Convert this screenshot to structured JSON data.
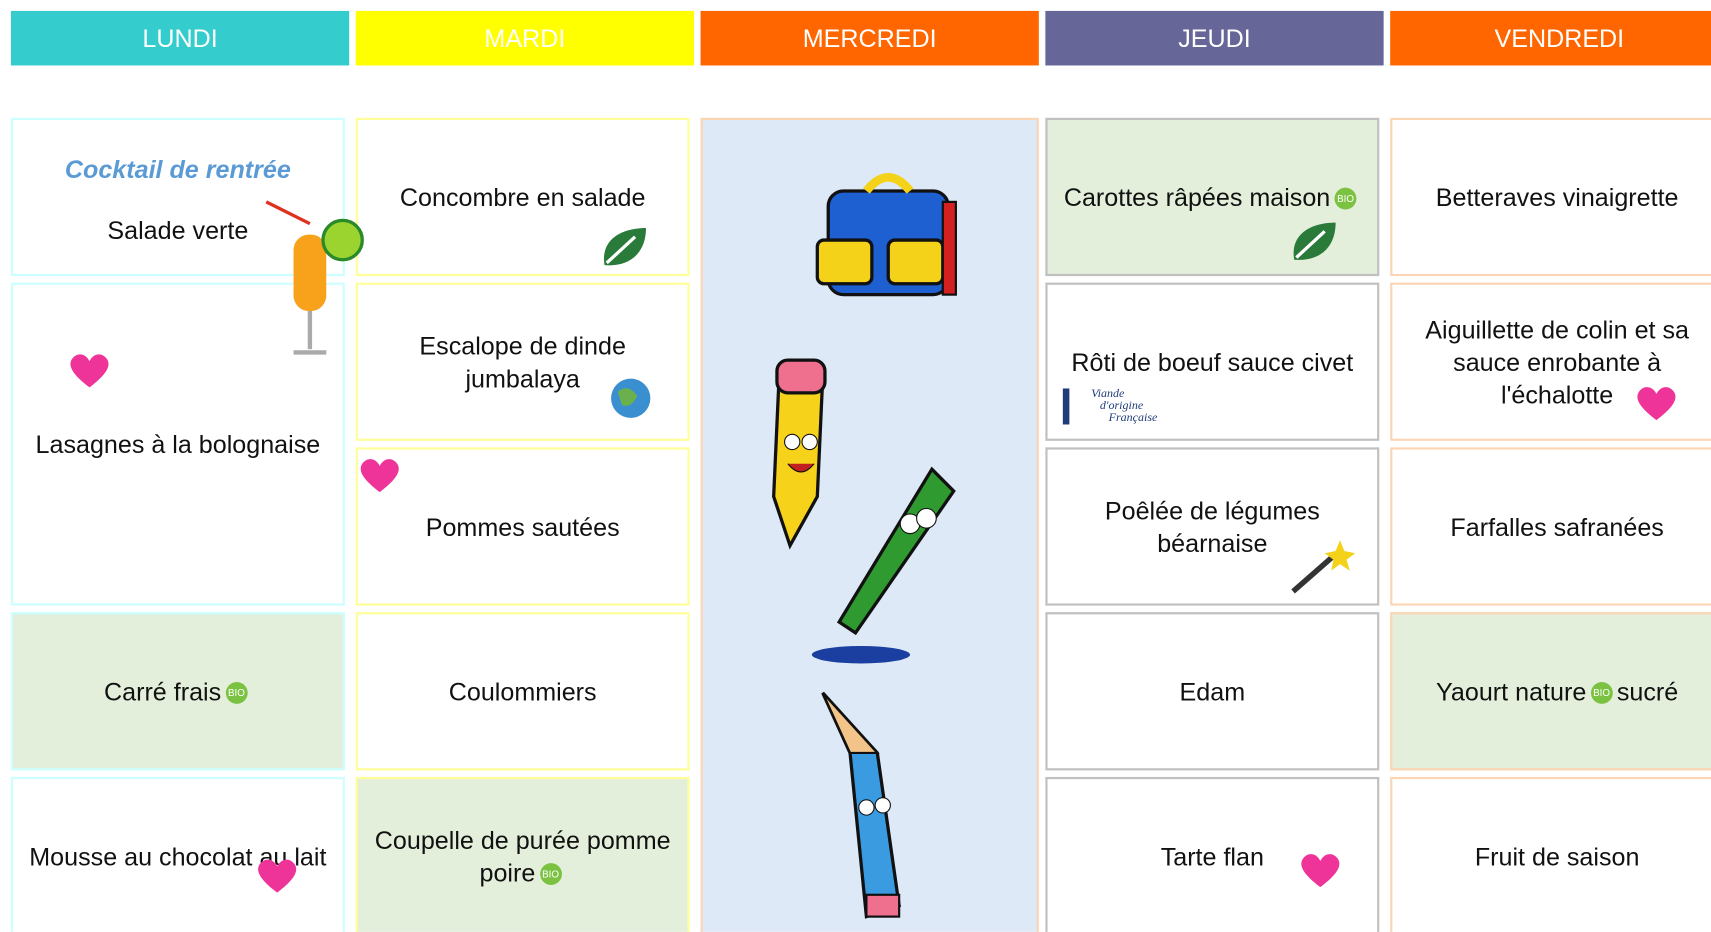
{
  "days": [
    {
      "name": "LUNDI",
      "items": [
        {
          "subtitle": "Cocktail de rentrée",
          "text": "Salade verte"
        },
        {
          "text": "Lasagnes à la bolognaise"
        },
        {
          "text": "Carré frais",
          "bio": "BIO"
        },
        {
          "text": "Mousse au chocolat au lait"
        }
      ]
    },
    {
      "name": "MARDI",
      "items": [
        {
          "text": "Concombre en salade"
        },
        {
          "text": "Escalope de dinde jumbalaya"
        },
        {
          "text": "Pommes sautées"
        },
        {
          "text": "Coulommiers"
        },
        {
          "text": "Coupelle de purée pomme poire",
          "bio": "BIO"
        }
      ]
    },
    {
      "name": "MERCREDI",
      "items": []
    },
    {
      "name": "JEUDI",
      "items": [
        {
          "text": "Carottes râpées maison",
          "bio": "BIO"
        },
        {
          "text": "Rôti de boeuf sauce civet",
          "logo": [
            "Viande",
            "d'origine",
            "Française"
          ]
        },
        {
          "text": "Poêlée de légumes béarnaise"
        },
        {
          "text": "Edam"
        },
        {
          "text": "Tarte flan"
        }
      ]
    },
    {
      "name": "VENDREDI",
      "items": [
        {
          "text": "Betteraves vinaigrette"
        },
        {
          "text": "Aiguillette de colin et sa sauce enrobante à l'échalotte"
        },
        {
          "text": "Farfalles safranées"
        },
        {
          "text": "Yaourt nature",
          "bio": "BIO",
          "after": "sucré"
        },
        {
          "text": "Fruit de saison"
        }
      ]
    }
  ]
}
